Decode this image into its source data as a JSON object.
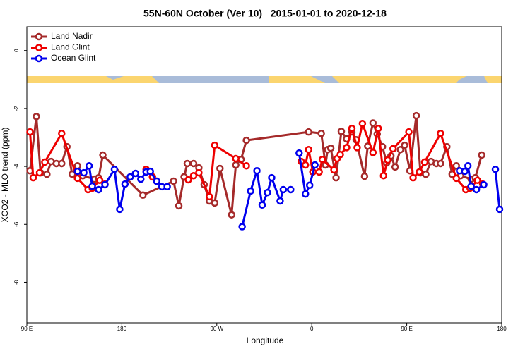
{
  "chart_data": {
    "type": "line",
    "title": "55N-60N October (Ver 10)   2015-01-01 to 2020-12-18",
    "xlabel": "Longitude",
    "ylabel": "XCO2 - MLO trend (ppm)",
    "xlim": [
      90,
      540
    ],
    "xticks": [
      {
        "value": 90,
        "label": "90 E"
      },
      180,
      {
        "value": 270,
        "label": "90 W"
      },
      {
        "value": 360,
        "label": "0"
      },
      {
        "value": 450,
        "label": "90 E"
      },
      {
        "value": 540,
        "label": "180"
      }
    ],
    "ylim": [
      -9.4,
      0.82
    ],
    "yticks": [
      -8,
      -6,
      -4,
      -2,
      0
    ],
    "grid": false,
    "legend": "topleft",
    "series": [
      {
        "name": "Land Nadir",
        "color": "#a52a2a",
        "x": [
          93,
          99,
          103,
          109,
          113,
          118,
          123,
          128,
          133,
          138,
          143,
          154,
          158,
          162,
          200,
          229,
          234,
          239,
          242,
          248,
          253,
          258,
          263,
          268,
          273,
          284,
          288,
          293,
          298,
          357,
          369,
          373,
          375,
          378,
          383,
          388,
          393,
          398,
          402,
          410,
          413,
          418,
          422,
          427,
          431,
          435,
          439,
          444,
          448,
          453,
          459,
          463,
          468,
          473,
          478,
          482,
          488,
          493,
          497,
          501,
          511,
          515,
          521
        ],
        "values": [
          -4.15,
          -2.28,
          -4.22,
          -4.27,
          -3.83,
          -3.9,
          -3.9,
          -3.32,
          -4.27,
          -3.98,
          -4.32,
          -4.44,
          -4.39,
          -3.61,
          -4.99,
          -4.51,
          -5.36,
          -4.36,
          -3.9,
          -3.9,
          -4.05,
          -4.63,
          -5.19,
          -5.26,
          -4.07,
          -5.67,
          -3.95,
          -3.76,
          -3.1,
          -2.81,
          -2.86,
          -3.95,
          -3.42,
          -3.37,
          -4.39,
          -2.79,
          -3.05,
          -2.81,
          -3.08,
          -4.34,
          -3.3,
          -2.5,
          -2.88,
          -3.32,
          -3.88,
          -3.64,
          -4.02,
          -3.42,
          -3.27,
          -4.15,
          -2.25,
          -4.22,
          -4.27,
          -3.83,
          -3.9,
          -3.9,
          -3.32,
          -4.27,
          -3.98,
          -4.32,
          -4.44,
          -4.39,
          -3.61
        ]
      },
      {
        "name": "Land Glint",
        "color": "#ee0000",
        "x": [
          93,
          96,
          102,
          107,
          123,
          138,
          148,
          152,
          159,
          164,
          null,
          203,
          209,
          213,
          null,
          243,
          248,
          253,
          263,
          268,
          288,
          298,
          null,
          350,
          354,
          357,
          361,
          367,
          370,
          381,
          384,
          387,
          393,
          398,
          403,
          408,
          418,
          423,
          428,
          432,
          437,
          452,
          456,
          462,
          467,
          482,
          497,
          506,
          510,
          517,
          522
        ],
        "values": [
          -2.81,
          -4.39,
          -4.22,
          -3.85,
          -2.86,
          -4.41,
          -4.8,
          -4.75,
          -4.48,
          -4.61,
          null,
          -4.1,
          -4.36,
          -4.51,
          null,
          -4.46,
          -4.32,
          -4.22,
          -5.04,
          -3.27,
          -3.73,
          -3.98,
          null,
          -3.83,
          -3.95,
          -3.42,
          -4.19,
          -4.19,
          -3.76,
          -4.12,
          -3.73,
          -3.59,
          -3.35,
          -2.69,
          -3.35,
          -2.52,
          -3.52,
          -2.69,
          -4.32,
          -3.78,
          -3.39,
          -2.81,
          -4.39,
          -4.19,
          -3.85,
          -2.86,
          -4.41,
          -4.8,
          -4.75,
          -4.48,
          -4.61
        ]
      },
      {
        "name": "Ocean Glint",
        "color": "#0000ee",
        "x": [
          138,
          144,
          149,
          152,
          158,
          164,
          173,
          178,
          183,
          188,
          193,
          198,
          203,
          207,
          213,
          218,
          223,
          null,
          294,
          302,
          308,
          313,
          318,
          322,
          330,
          333,
          340,
          null,
          348,
          354,
          358,
          363,
          null,
          500,
          505,
          508,
          511,
          516,
          523,
          null,
          534,
          538
        ],
        "values": [
          -4.17,
          -4.22,
          -3.98,
          -4.68,
          -4.8,
          -4.63,
          -4.1,
          -5.48,
          -4.61,
          -4.36,
          -4.24,
          -4.44,
          -4.19,
          -4.17,
          -4.51,
          -4.7,
          -4.7,
          null,
          -6.08,
          -4.85,
          -4.15,
          -5.33,
          -4.9,
          -4.39,
          -5.19,
          -4.8,
          -4.8,
          null,
          -3.54,
          -4.95,
          -4.65,
          -3.95,
          null,
          -4.15,
          -4.17,
          -3.98,
          -4.68,
          -4.8,
          -4.63,
          null,
          -4.1,
          -5.48
        ]
      }
    ]
  }
}
